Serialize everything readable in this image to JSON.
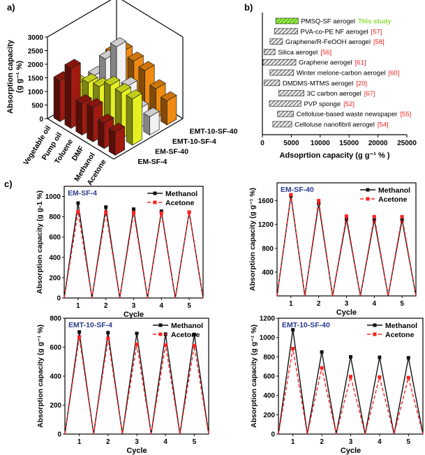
{
  "panel_labels": {
    "a": "a)",
    "b": "b)",
    "c": "c)"
  },
  "chart_data": [
    {
      "id": "a",
      "type": "bar3d",
      "zlabel_line1": "Absorption capacity",
      "zlabel_line2": "(g g⁻¹ %)",
      "zlim": [
        0,
        3000
      ],
      "zticks": [
        "0",
        "500",
        "1000",
        "1500",
        "2000",
        "2500",
        "3000"
      ],
      "categories": [
        "Vegetable oil",
        "Pump oil",
        "Toluene",
        "DMF",
        "Methanol",
        "Acetone"
      ],
      "series": [
        {
          "name": "EM-SF-4",
          "color": "#a01a10",
          "values": [
            1500,
            2200,
            1150,
            1250,
            930,
            850
          ]
        },
        {
          "name": "EM-SF-40",
          "color": "#e4f020",
          "values": [
            1000,
            1300,
            1400,
            1700,
            1680,
            1700
          ]
        },
        {
          "name": "EMT-10-SF-4",
          "color": "#f2f2f2",
          "values": [
            950,
            1800,
            2500,
            1300,
            705,
            670
          ]
        },
        {
          "name": "EMT-10-SF-40",
          "color": "#f08a10",
          "values": [
            1400,
            1700,
            1600,
            1500,
            1080,
            885
          ]
        }
      ]
    },
    {
      "id": "b",
      "type": "bar-range-horizontal",
      "xlabel": "Adsoprtion capacity (g g⁻¹ % )",
      "xlim": [
        0,
        25000
      ],
      "xticks": [
        "0",
        "5000",
        "10000",
        "15000",
        "20000",
        "25000"
      ],
      "bars": [
        {
          "label": "PMSQ-SF aerogel",
          "ref": "This study",
          "start": 2300,
          "end": 6200,
          "highlight": true
        },
        {
          "label": "PVA-co-PE NF aerogel",
          "ref": "[57]",
          "start": 2100,
          "end": 6100
        },
        {
          "label": "Graphene/R-FeOOH aerogel",
          "ref": "[58]",
          "start": 1300,
          "end": 3500
        },
        {
          "label": "Silica aerogel",
          "ref": "[56]",
          "start": 300,
          "end": 2200
        },
        {
          "label": "Graphene aerogel",
          "ref": "[61]",
          "start": 100,
          "end": 5800
        },
        {
          "label": "Winter melone-carbon aerogel",
          "ref": "[60]",
          "start": 1300,
          "end": 5400
        },
        {
          "label": "DMDMS-MTMS aerogel",
          "ref": "[20]",
          "start": 300,
          "end": 3000
        },
        {
          "label": "3C carbon aerogel",
          "ref": "[67]",
          "start": 2800,
          "end": 7200
        },
        {
          "label": "PVP sponge",
          "ref": "[52]",
          "start": 1200,
          "end": 6700
        },
        {
          "label": "Celloluse-based waste newspaper",
          "ref": "[55]",
          "start": 2600,
          "end": 5400
        },
        {
          "label": "Celloluse nanofibril aerogel",
          "ref": "[54]",
          "start": 1800,
          "end": 5100
        }
      ],
      "colors": {
        "highlight": "#66cc22",
        "this_study_text": "#88dd33",
        "ref_text": "#ee2222"
      }
    },
    {
      "id": "c1",
      "type": "line",
      "title": "EM-SF-4",
      "xlabel": "Cycle",
      "ylabel": "Absorption capacity (g g-1 %)",
      "xlim": [
        0.5,
        5.5
      ],
      "ylim": [
        0,
        1100
      ],
      "xticks": [
        "1",
        "2",
        "3",
        "4",
        "5"
      ],
      "yticks": [
        "0",
        "200",
        "400",
        "600",
        "800",
        "1000"
      ],
      "cycles": [
        1,
        2,
        3,
        4,
        5
      ],
      "series": [
        {
          "name": "Methanol",
          "color": "#111111",
          "peaks": [
            935,
            895,
            875,
            855,
            845
          ]
        },
        {
          "name": "Acetone",
          "color": "#ff2020",
          "peaks": [
            850,
            845,
            840,
            835,
            845
          ]
        }
      ]
    },
    {
      "id": "c2",
      "type": "line",
      "title": "EM-SF-40",
      "xlabel": "Cycle",
      "ylabel": "Absorption capacity (g g⁻¹ %)",
      "xlim": [
        0.5,
        5.5
      ],
      "ylim": [
        0,
        1900
      ],
      "xticks": [
        "1",
        "2",
        "3",
        "4",
        "5"
      ],
      "yticks": [
        "400",
        "800",
        "1200",
        "1600"
      ],
      "cycles": [
        1,
        2,
        3,
        4,
        5
      ],
      "series": [
        {
          "name": "Methanol",
          "color": "#111111",
          "peaks": [
            1680,
            1550,
            1290,
            1280,
            1280
          ]
        },
        {
          "name": "Acetone",
          "color": "#ff2020",
          "peaks": [
            1700,
            1600,
            1340,
            1330,
            1330
          ]
        }
      ]
    },
    {
      "id": "c3",
      "type": "line",
      "title": "EMT-10-SF-4",
      "xlabel": "Cycle",
      "ylabel": "Absorption capacity (g g⁻¹ %)",
      "xlim": [
        0.5,
        5.5
      ],
      "ylim": [
        0,
        800
      ],
      "xticks": [
        "1",
        "2",
        "3",
        "4",
        "5"
      ],
      "yticks": [
        "0",
        "200",
        "400",
        "600",
        "800"
      ],
      "cycles": [
        1,
        2,
        3,
        4,
        5
      ],
      "series": [
        {
          "name": "Methanol",
          "color": "#111111",
          "peaks": [
            705,
            700,
            695,
            690,
            688
          ]
        },
        {
          "name": "Acetone",
          "color": "#ff2020",
          "peaks": [
            670,
            660,
            620,
            615,
            610
          ]
        }
      ]
    },
    {
      "id": "c4",
      "type": "line",
      "title": "EMT-10-SF-40",
      "xlabel": "Cycle",
      "ylabel": "Absorption capacity (g g⁻¹ %)",
      "xlim": [
        0.5,
        5.5
      ],
      "ylim": [
        0,
        1200
      ],
      "xticks": [
        "1",
        "2",
        "3",
        "4",
        "5"
      ],
      "yticks": [
        "0",
        "200",
        "400",
        "600",
        "800",
        "1000",
        "1200"
      ],
      "cycles": [
        1,
        2,
        3,
        4,
        5
      ],
      "series": [
        {
          "name": "Methanol",
          "color": "#111111",
          "peaks": [
            1080,
            850,
            800,
            795,
            790
          ]
        },
        {
          "name": "Acetone",
          "color": "#ff2020",
          "peaks": [
            885,
            685,
            595,
            590,
            585
          ]
        }
      ]
    }
  ],
  "title_color": "#2a3a8c"
}
